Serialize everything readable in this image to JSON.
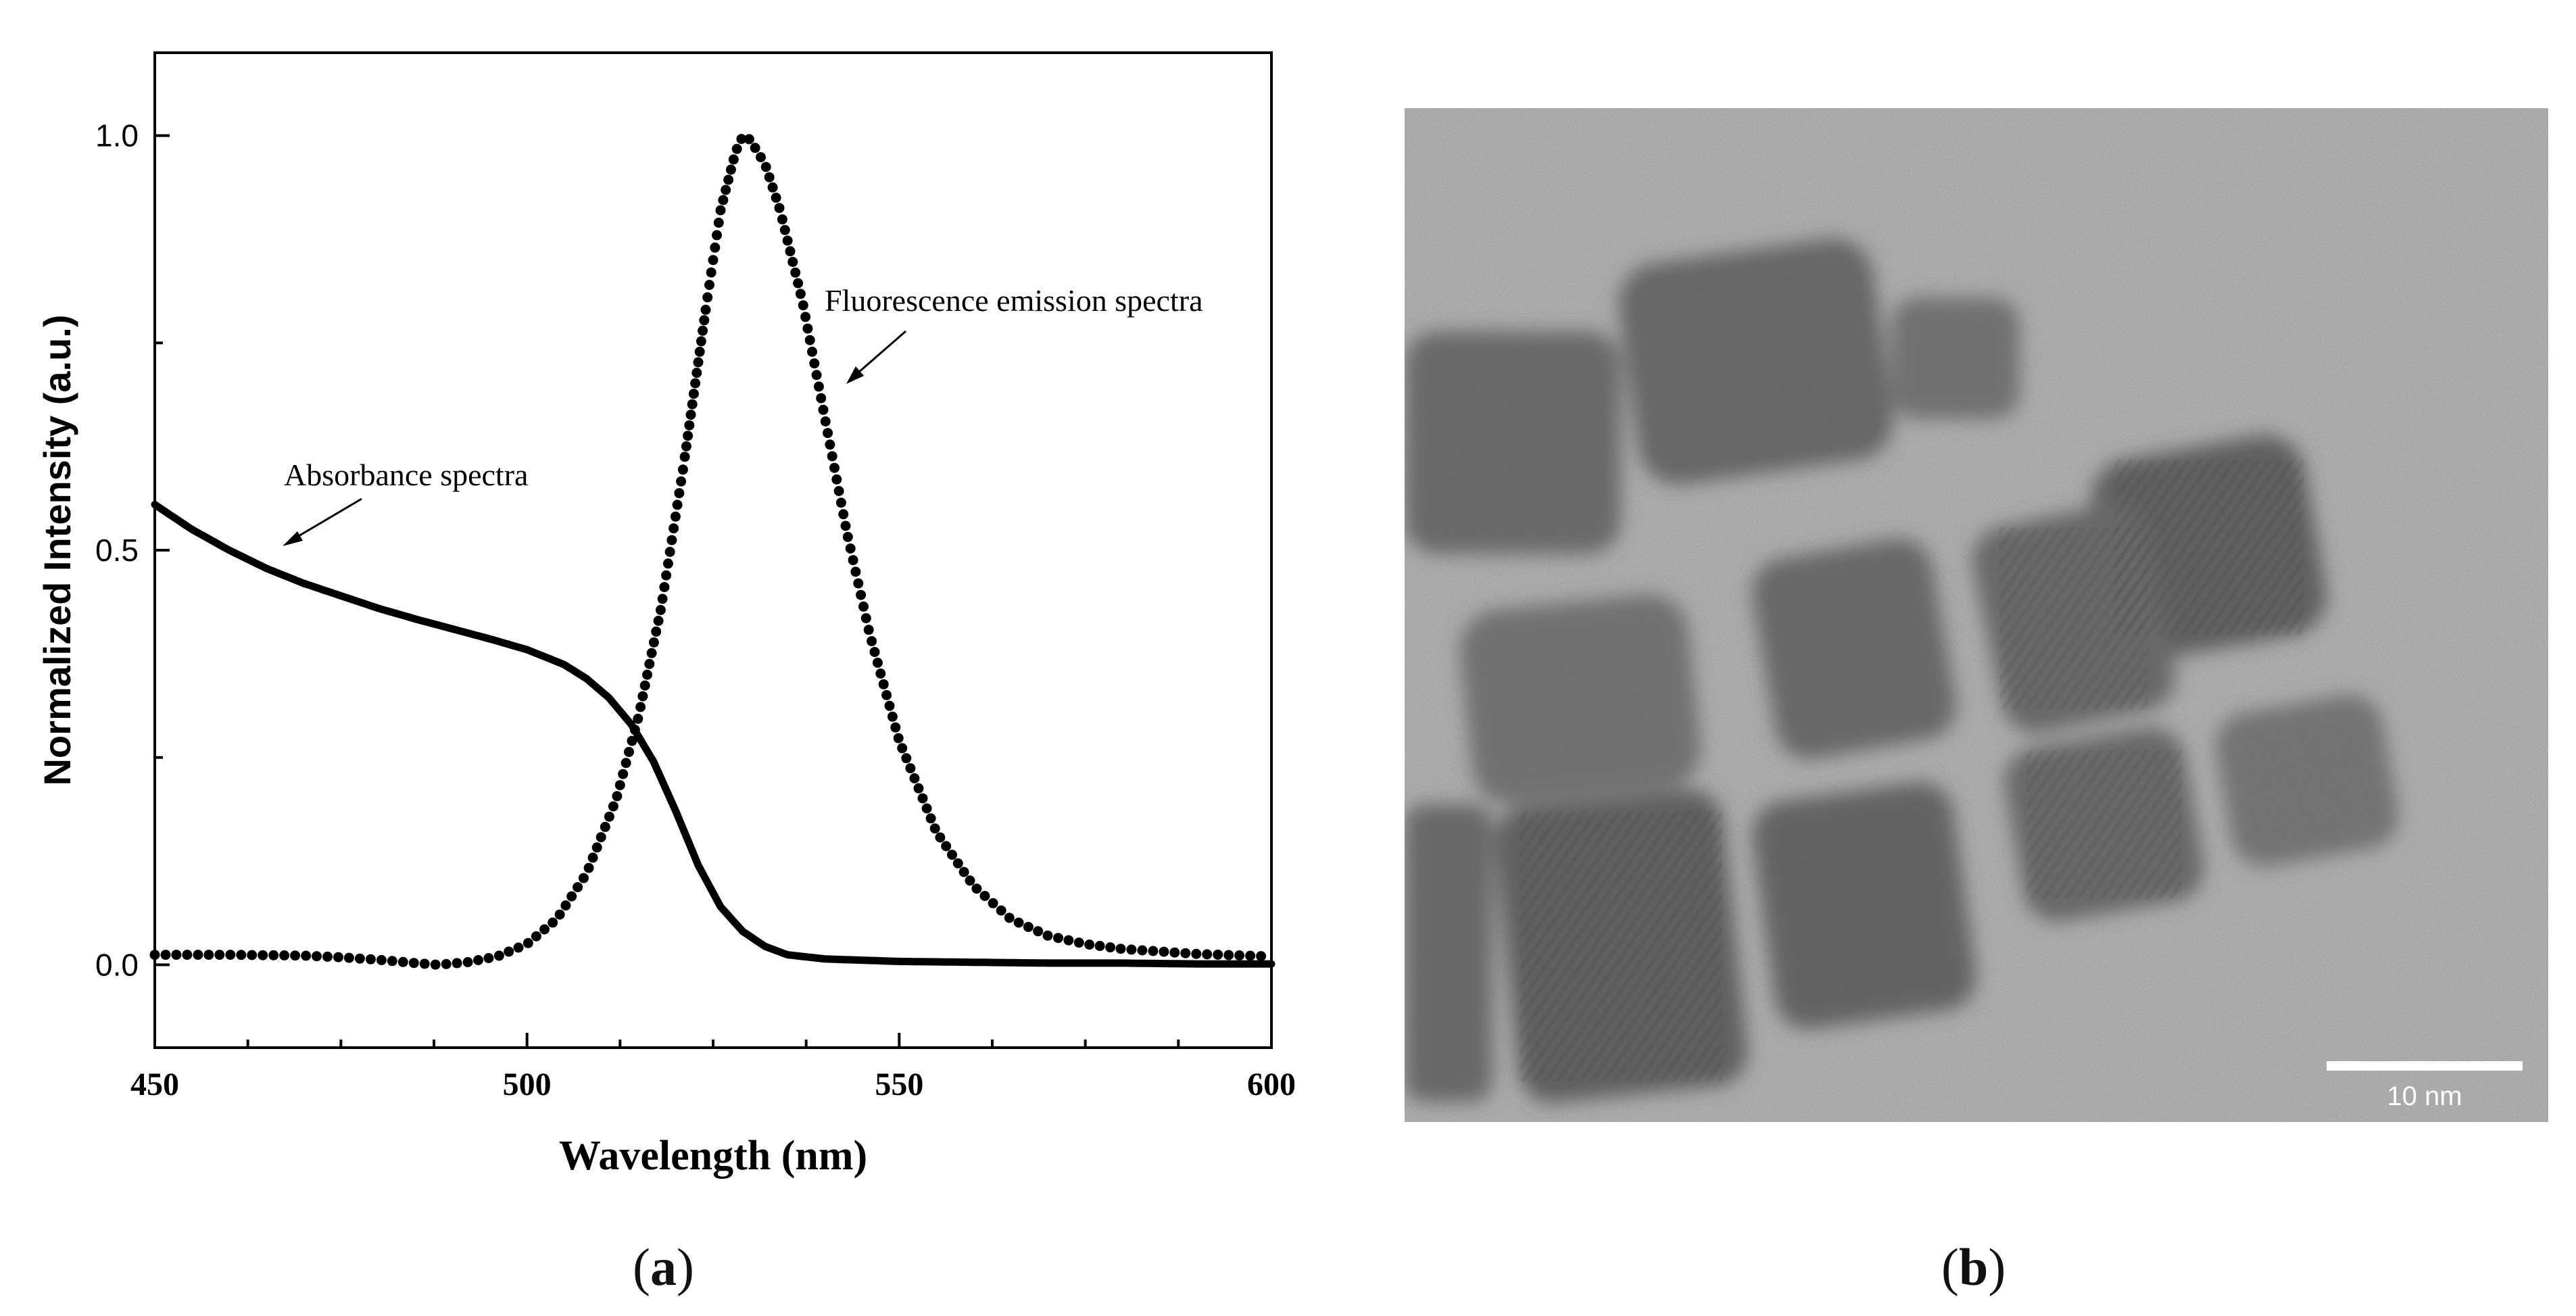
{
  "chart_data": {
    "type": "line",
    "title": "",
    "xlabel": "Wavelength (nm)",
    "ylabel": "Normalized Intensity (a.u.)",
    "xlim": [
      450,
      600
    ],
    "ylim": [
      -0.1,
      1.1
    ],
    "x_ticks": [
      "450",
      "500",
      "550",
      "600"
    ],
    "y_ticks": [
      "0.0",
      "0.5",
      "1.0"
    ],
    "series": [
      {
        "name": "Absorbance spectra",
        "style": "solid",
        "x": [
          450,
          455,
          460,
          465,
          470,
          475,
          480,
          485,
          490,
          495,
          500,
          505,
          508,
          511,
          514,
          517,
          520,
          523,
          526,
          529,
          532,
          535,
          540,
          550,
          560,
          570,
          580,
          590,
          600
        ],
        "y": [
          0.555,
          0.525,
          0.5,
          0.478,
          0.46,
          0.445,
          0.43,
          0.417,
          0.405,
          0.393,
          0.38,
          0.362,
          0.345,
          0.322,
          0.29,
          0.245,
          0.185,
          0.12,
          0.07,
          0.04,
          0.022,
          0.012,
          0.007,
          0.004,
          0.003,
          0.002,
          0.002,
          0.001,
          0.001
        ]
      },
      {
        "name": "Fluorescence emission spectra",
        "style": "dotted",
        "peak_x": 529,
        "peak_y": 1.0,
        "x": [
          450,
          460,
          470,
          475,
          480,
          485,
          488,
          492,
          496,
          500,
          504,
          508,
          512,
          515,
          518,
          521,
          524,
          526,
          528,
          529,
          530,
          532,
          534,
          537,
          540,
          543,
          546,
          550,
          555,
          560,
          565,
          570,
          575,
          580,
          590,
          600
        ],
        "y": [
          0.012,
          0.012,
          0.011,
          0.009,
          0.006,
          0.002,
          0.0,
          0.003,
          0.01,
          0.025,
          0.055,
          0.11,
          0.2,
          0.3,
          0.43,
          0.6,
          0.79,
          0.91,
          0.98,
          1.0,
          0.995,
          0.965,
          0.91,
          0.8,
          0.66,
          0.52,
          0.4,
          0.27,
          0.16,
          0.095,
          0.055,
          0.035,
          0.025,
          0.019,
          0.013,
          0.01
        ]
      }
    ],
    "annotations": [
      {
        "text": "Absorbance spectra",
        "points_to": "Absorbance spectra"
      },
      {
        "text": "Fluorescence emission spectra",
        "points_to": "Fluorescence emission spectra"
      }
    ]
  },
  "micrograph": {
    "scale_bar_label": "10 nm"
  },
  "panels": {
    "a_prefix": "(",
    "a_letter": "a",
    "a_suffix": ")",
    "b_prefix": "(",
    "b_letter": "b",
    "b_suffix": ")"
  }
}
